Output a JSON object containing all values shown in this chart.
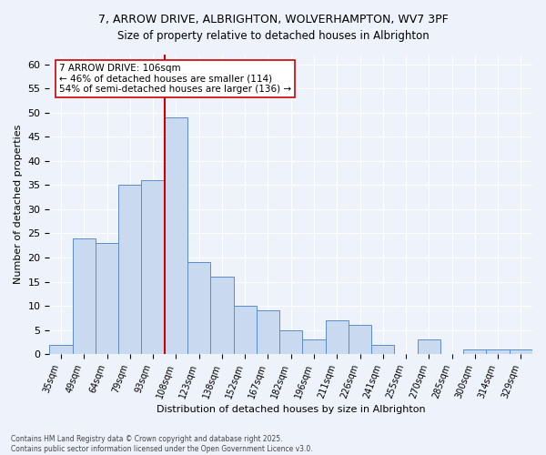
{
  "title_line1": "7, ARROW DRIVE, ALBRIGHTON, WOLVERHAMPTON, WV7 3PF",
  "title_line2": "Size of property relative to detached houses in Albrighton",
  "xlabel": "Distribution of detached houses by size in Albrighton",
  "ylabel": "Number of detached properties",
  "categories": [
    "35sqm",
    "49sqm",
    "64sqm",
    "79sqm",
    "93sqm",
    "108sqm",
    "123sqm",
    "138sqm",
    "152sqm",
    "167sqm",
    "182sqm",
    "196sqm",
    "211sqm",
    "226sqm",
    "241sqm",
    "255sqm",
    "270sqm",
    "285sqm",
    "300sqm",
    "314sqm",
    "329sqm"
  ],
  "values": [
    2,
    24,
    23,
    35,
    36,
    49,
    19,
    16,
    10,
    9,
    5,
    3,
    7,
    6,
    2,
    0,
    3,
    0,
    1,
    1,
    1
  ],
  "bar_color": "#c9d9ef",
  "bar_edge_color": "#5b8dc8",
  "highlight_index": 5,
  "vline_color": "#cc0000",
  "annotation_text": "7 ARROW DRIVE: 106sqm\n← 46% of detached houses are smaller (114)\n54% of semi-detached houses are larger (136) →",
  "annotation_box_color": "#ffffff",
  "annotation_box_edge": "#cc0000",
  "ylim": [
    0,
    62
  ],
  "yticks": [
    0,
    5,
    10,
    15,
    20,
    25,
    30,
    35,
    40,
    45,
    50,
    55,
    60
  ],
  "background_color": "#eef2fa",
  "grid_color": "#ffffff",
  "footer": "Contains HM Land Registry data © Crown copyright and database right 2025.\nContains public sector information licensed under the Open Government Licence v3.0."
}
